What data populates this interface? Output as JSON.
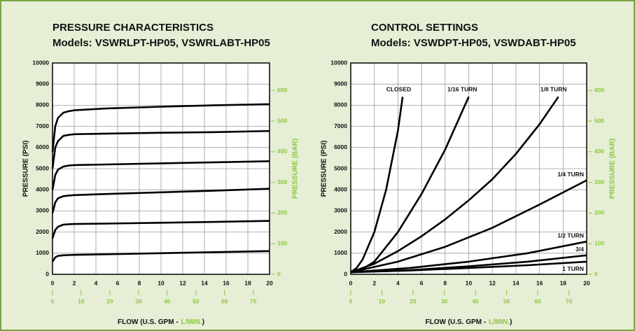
{
  "chart_data": [
    {
      "type": "line",
      "title": "PRESSURE CHARACTERISTICS",
      "subtitle": "Models: VSWRLPT-HP05, VSWRLABT-HP05",
      "ylabel": "PRESSURE (PSI)",
      "y2label": "PRESSURE (BAR)",
      "xlabel": [
        "FLOW (U.S. GPM -",
        "L/MIN.",
        ")"
      ],
      "xlim": [
        0,
        20
      ],
      "xticks": [
        0,
        2,
        4,
        6,
        8,
        10,
        12,
        14,
        16,
        18,
        20
      ],
      "x2lim": [
        0,
        75.7
      ],
      "x2ticks": [
        0,
        10,
        20,
        30,
        40,
        50,
        60,
        70
      ],
      "ylim": [
        0,
        10000
      ],
      "yticks": [
        0,
        1000,
        2000,
        3000,
        4000,
        5000,
        6000,
        7000,
        8000,
        9000,
        10000
      ],
      "y2lim": [
        0,
        689.5
      ],
      "y2ticks": [
        0,
        100,
        200,
        300,
        400,
        500,
        600
      ],
      "grid": true,
      "line_color": "#000000",
      "secondary_color": "#8dc63f",
      "x": [
        0,
        0.25,
        0.5,
        1,
        1.5,
        2,
        5,
        10,
        15,
        20
      ],
      "series": [
        {
          "values": [
            5800,
            7000,
            7400,
            7650,
            7720,
            7760,
            7850,
            7930,
            8000,
            8050
          ]
        },
        {
          "values": [
            5000,
            6000,
            6300,
            6550,
            6600,
            6630,
            6660,
            6700,
            6730,
            6780
          ]
        },
        {
          "values": [
            4000,
            4700,
            4950,
            5100,
            5150,
            5170,
            5200,
            5250,
            5300,
            5350
          ]
        },
        {
          "values": [
            2900,
            3400,
            3600,
            3700,
            3730,
            3750,
            3800,
            3880,
            3960,
            4050
          ]
        },
        {
          "values": [
            1700,
            2100,
            2250,
            2350,
            2370,
            2380,
            2400,
            2440,
            2480,
            2530
          ]
        },
        {
          "values": [
            600,
            800,
            870,
            900,
            910,
            920,
            950,
            1000,
            1050,
            1100
          ]
        }
      ]
    },
    {
      "type": "line",
      "title": "CONTROL SETTINGS",
      "subtitle": "Models: VSWDPT-HP05, VSWDABT-HP05",
      "ylabel": "PRESSURE (PSI)",
      "y2label": "PRESSURE (BAR)",
      "xlabel": [
        "FLOW (U.S. GPM -",
        "L/MIN.",
        ")"
      ],
      "xlim": [
        0,
        20
      ],
      "xticks": [
        0,
        2,
        4,
        6,
        8,
        10,
        12,
        14,
        16,
        18,
        20
      ],
      "x2lim": [
        0,
        75.7
      ],
      "x2ticks": [
        0,
        10,
        20,
        30,
        40,
        50,
        60,
        70
      ],
      "ylim": [
        0,
        10000
      ],
      "yticks": [
        0,
        1000,
        2000,
        3000,
        4000,
        5000,
        6000,
        7000,
        8000,
        9000,
        10000
      ],
      "y2lim": [
        0,
        689.5
      ],
      "y2ticks": [
        0,
        100,
        200,
        300,
        400,
        500,
        600
      ],
      "grid": true,
      "line_color": "#000000",
      "secondary_color": "#8dc63f",
      "series": [
        {
          "name": "CLOSED",
          "x": [
            0,
            0.5,
            1,
            2,
            3,
            4,
            4.4
          ],
          "values": [
            100,
            300,
            700,
            2000,
            4000,
            6800,
            8400
          ]
        },
        {
          "name": "1/16 TURN",
          "x": [
            0,
            1,
            2,
            4,
            6,
            8,
            10
          ],
          "values": [
            100,
            250,
            600,
            2000,
            3800,
            5900,
            8400
          ]
        },
        {
          "name": "1/8 TURN",
          "x": [
            0,
            2,
            4,
            6,
            8,
            10,
            12,
            14,
            16,
            17.6
          ],
          "values": [
            100,
            500,
            1100,
            1800,
            2600,
            3500,
            4500,
            5700,
            7100,
            8400
          ]
        },
        {
          "name": "1/4 TURN",
          "x": [
            0,
            4,
            8,
            12,
            16,
            20
          ],
          "values": [
            100,
            600,
            1300,
            2200,
            3300,
            4450
          ]
        },
        {
          "name": "1/2 TURN",
          "x": [
            0,
            5,
            10,
            15,
            20
          ],
          "values": [
            100,
            300,
            600,
            1000,
            1550
          ]
        },
        {
          "name": "3/4",
          "x": [
            0,
            5,
            10,
            15,
            20
          ],
          "values": [
            100,
            200,
            380,
            600,
            900
          ]
        },
        {
          "name": "1 TURN",
          "x": [
            0,
            5,
            10,
            15,
            20
          ],
          "values": [
            100,
            180,
            300,
            430,
            600
          ]
        }
      ]
    }
  ]
}
